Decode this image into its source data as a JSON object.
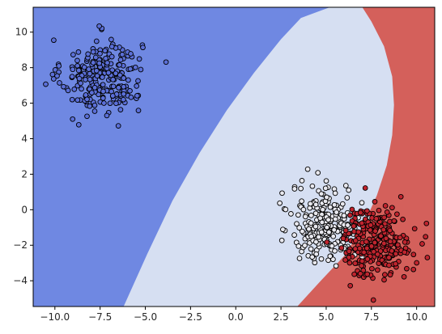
{
  "chart_data": {
    "type": "scatter",
    "title": "",
    "xlabel": "",
    "ylabel": "",
    "xlim": [
      -11.2,
      11.0
    ],
    "ylim": [
      -5.45,
      11.4
    ],
    "grid": false,
    "legend": "none",
    "x_ticks": [
      -10.0,
      -7.5,
      -5.0,
      -2.5,
      0.0,
      2.5,
      5.0,
      7.5,
      10.0
    ],
    "x_tick_labels": [
      "−10.0",
      "−7.5",
      "−5.0",
      "−2.5",
      "0.0",
      "2.5",
      "5.0",
      "7.5",
      "10.0"
    ],
    "y_ticks": [
      -4,
      -2,
      0,
      2,
      4,
      6,
      8,
      10
    ],
    "y_tick_labels": [
      "−4",
      "−2",
      "0",
      "2",
      "4",
      "6",
      "8",
      "10"
    ],
    "regions": [
      {
        "class": 0,
        "color": "#6f88e2"
      },
      {
        "class": 1,
        "color": "#d6dff2"
      },
      {
        "class": 2,
        "color": "#d4605b"
      }
    ],
    "decision_boundaries": [
      {
        "between": [
          0,
          1
        ],
        "points": [
          [
            -6.2,
            -5.45
          ],
          [
            -4.9,
            -2.5
          ],
          [
            -3.5,
            0.5
          ],
          [
            -2.0,
            3.2
          ],
          [
            -0.5,
            5.6
          ],
          [
            1.0,
            7.7
          ],
          [
            2.5,
            9.6
          ],
          [
            3.6,
            10.8
          ],
          [
            5.2,
            11.4
          ]
        ]
      },
      {
        "between": [
          1,
          2
        ],
        "points": [
          [
            3.4,
            -5.45
          ],
          [
            4.7,
            -4.0
          ],
          [
            6.0,
            -2.6
          ],
          [
            7.0,
            -1.0
          ],
          [
            7.8,
            0.8
          ],
          [
            8.35,
            2.5
          ],
          [
            8.65,
            4.2
          ],
          [
            8.75,
            5.9
          ],
          [
            8.65,
            7.5
          ],
          [
            8.2,
            9.2
          ],
          [
            7.5,
            10.6
          ],
          [
            7.0,
            11.4
          ]
        ]
      }
    ],
    "series": [
      {
        "class": 0,
        "color": "#5b6fd8",
        "cluster": {
          "center": [
            -7.4,
            7.5
          ],
          "spread": [
            1.1,
            1.05
          ],
          "count": 250
        }
      },
      {
        "class": 1,
        "color": "#e8e8ee",
        "cluster": {
          "center": [
            5.0,
            -0.8
          ],
          "spread": [
            0.95,
            1.1
          ],
          "count": 250
        }
      },
      {
        "class": 2,
        "color": "#c0242e",
        "cluster": {
          "center": [
            7.8,
            -1.8
          ],
          "spread": [
            0.95,
            1.0
          ],
          "count": 250
        }
      }
    ]
  }
}
